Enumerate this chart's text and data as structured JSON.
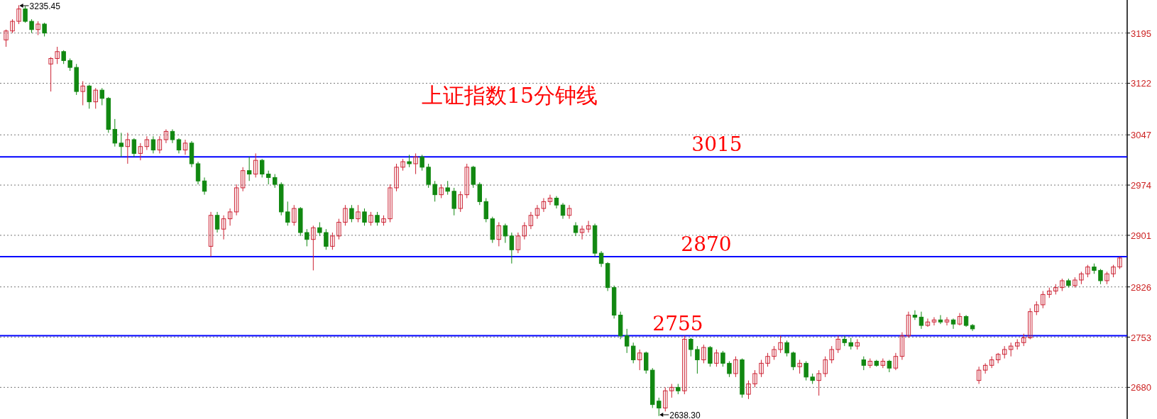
{
  "chart_data": {
    "type": "candlestick",
    "title": "上证指数15分钟线",
    "categories": [
      null,
      null,
      null,
      null,
      null,
      null,
      null,
      null,
      null,
      null,
      null,
      null,
      null,
      null,
      null,
      null,
      null,
      null,
      null,
      null,
      null,
      null,
      null,
      null,
      null,
      null,
      null,
      null,
      null,
      null,
      null,
      null,
      null,
      null,
      null,
      null,
      null,
      null,
      null,
      null,
      null,
      null,
      null,
      null,
      null,
      null,
      null,
      null,
      null,
      null,
      null,
      null,
      null,
      null,
      null,
      null,
      null,
      null,
      null,
      null,
      null,
      null,
      null,
      null,
      null,
      null,
      null,
      null,
      null,
      null,
      null,
      null,
      null,
      null,
      null,
      null,
      null,
      null,
      null,
      null,
      null,
      null,
      null,
      null,
      null,
      null,
      null,
      null,
      null,
      null,
      null,
      null,
      null,
      null,
      null,
      null,
      null,
      null,
      null,
      null,
      null,
      null,
      null,
      null,
      null,
      null,
      null,
      null,
      null,
      null,
      null,
      null,
      null,
      null,
      null,
      null,
      null,
      null,
      null,
      null,
      null,
      null,
      null,
      null,
      null,
      null,
      null,
      null,
      null,
      null,
      null,
      null,
      null,
      null,
      null,
      null,
      null,
      null,
      null,
      null,
      null,
      null,
      null,
      null,
      null,
      null,
      null,
      null,
      null,
      null,
      null,
      null,
      null,
      null,
      null,
      null,
      null,
      null,
      null,
      null,
      null,
      null,
      null,
      null,
      null,
      null,
      null,
      null,
      null,
      null,
      null,
      null,
      null,
      null,
      null
    ],
    "ohlc": [
      [
        3185,
        3200,
        3175,
        3198
      ],
      [
        3198,
        3215,
        3195,
        3212
      ],
      [
        3212,
        3235.45,
        3208,
        3230
      ],
      [
        3230,
        3234,
        3210,
        3212
      ],
      [
        3212,
        3215,
        3195,
        3200
      ],
      [
        3200,
        3212,
        3192,
        3208
      ],
      [
        3208,
        3210,
        3190,
        3195
      ],
      [
        3150,
        3160,
        3110,
        3158
      ],
      [
        3158,
        3175,
        3150,
        3168
      ],
      [
        3168,
        3170,
        3150,
        3155
      ],
      [
        3155,
        3158,
        3140,
        3145
      ],
      [
        3145,
        3150,
        3105,
        3110
      ],
      [
        3110,
        3125,
        3090,
        3118
      ],
      [
        3118,
        3120,
        3085,
        3095
      ],
      [
        3095,
        3115,
        3085,
        3112
      ],
      [
        3112,
        3115,
        3090,
        3100
      ],
      [
        3100,
        3102,
        3050,
        3055
      ],
      [
        3055,
        3070,
        3030,
        3035
      ],
      [
        3035,
        3050,
        3015,
        3030
      ],
      [
        3030,
        3050,
        3005,
        3040
      ],
      [
        3040,
        3042,
        3015,
        3020
      ],
      [
        3020,
        3035,
        3010,
        3030
      ],
      [
        3030,
        3045,
        3025,
        3040
      ],
      [
        3040,
        3045,
        3020,
        3025
      ],
      [
        3025,
        3045,
        3020,
        3040
      ],
      [
        3040,
        3055,
        3035,
        3052
      ],
      [
        3052,
        3055,
        3035,
        3040
      ],
      [
        3040,
        3042,
        3020,
        3025
      ],
      [
        3025,
        3040,
        3018,
        3035
      ],
      [
        3035,
        3038,
        3000,
        3005
      ],
      [
        3005,
        3008,
        2975,
        2980
      ],
      [
        2980,
        2985,
        2960,
        2965
      ],
      [
        2885,
        2935,
        2870,
        2930
      ],
      [
        2930,
        2935,
        2905,
        2910
      ],
      [
        2910,
        2930,
        2895,
        2925
      ],
      [
        2925,
        2940,
        2915,
        2935
      ],
      [
        2935,
        2975,
        2930,
        2970
      ],
      [
        2970,
        3000,
        2965,
        2995
      ],
      [
        2995,
        3015,
        2980,
        2990
      ],
      [
        2990,
        3020,
        2985,
        3010
      ],
      [
        3010,
        3012,
        2985,
        2990
      ],
      [
        2990,
        2995,
        2975,
        2985
      ],
      [
        2985,
        2990,
        2970,
        2975
      ],
      [
        2975,
        2978,
        2930,
        2935
      ],
      [
        2935,
        2950,
        2915,
        2920
      ],
      [
        2920,
        2945,
        2915,
        2940
      ],
      [
        2940,
        2942,
        2900,
        2905
      ],
      [
        2905,
        2910,
        2885,
        2895
      ],
      [
        2895,
        2915,
        2850,
        2912
      ],
      [
        2912,
        2920,
        2900,
        2905
      ],
      [
        2905,
        2910,
        2880,
        2885
      ],
      [
        2885,
        2905,
        2880,
        2900
      ],
      [
        2900,
        2925,
        2895,
        2920
      ],
      [
        2920,
        2945,
        2915,
        2940
      ],
      [
        2940,
        2945,
        2920,
        2925
      ],
      [
        2925,
        2945,
        2920,
        2935
      ],
      [
        2935,
        2940,
        2915,
        2920
      ],
      [
        2920,
        2935,
        2915,
        2930
      ],
      [
        2930,
        2935,
        2915,
        2920
      ],
      [
        2920,
        2930,
        2915,
        2925
      ],
      [
        2925,
        2975,
        2920,
        2970
      ],
      [
        2970,
        3005,
        2965,
        3000
      ],
      [
        3000,
        3012,
        2995,
        3008
      ],
      [
        3008,
        3018,
        3000,
        3005
      ],
      [
        3005,
        3020,
        2990,
        3015
      ],
      [
        3015,
        3018,
        2995,
        3000
      ],
      [
        3000,
        3005,
        2970,
        2975
      ],
      [
        2975,
        2980,
        2950,
        2960
      ],
      [
        2960,
        2975,
        2955,
        2970
      ],
      [
        2970,
        2980,
        2960,
        2965
      ],
      [
        2965,
        2970,
        2930,
        2940
      ],
      [
        2940,
        2965,
        2935,
        2960
      ],
      [
        2960,
        3005,
        2955,
        3000
      ],
      [
        3000,
        3002,
        2970,
        2975
      ],
      [
        2975,
        2978,
        2945,
        2950
      ],
      [
        2950,
        2955,
        2920,
        2925
      ],
      [
        2925,
        2928,
        2890,
        2895
      ],
      [
        2895,
        2920,
        2885,
        2915
      ],
      [
        2915,
        2918,
        2890,
        2900
      ],
      [
        2900,
        2905,
        2860,
        2880
      ],
      [
        2880,
        2905,
        2875,
        2900
      ],
      [
        2900,
        2920,
        2895,
        2915
      ],
      [
        2915,
        2935,
        2910,
        2930
      ],
      [
        2930,
        2945,
        2925,
        2940
      ],
      [
        2940,
        2955,
        2935,
        2950
      ],
      [
        2950,
        2960,
        2945,
        2955
      ],
      [
        2955,
        2958,
        2940,
        2945
      ],
      [
        2945,
        2948,
        2925,
        2930
      ],
      [
        2930,
        2945,
        2925,
        2940
      ],
      [
        2915,
        2920,
        2900,
        2905
      ],
      [
        2905,
        2915,
        2895,
        2910
      ],
      [
        2910,
        2922,
        2905,
        2915
      ],
      [
        2915,
        2918,
        2870,
        2875
      ],
      [
        2875,
        2878,
        2855,
        2860
      ],
      [
        2860,
        2862,
        2820,
        2825
      ],
      [
        2825,
        2828,
        2780,
        2785
      ],
      [
        2785,
        2790,
        2750,
        2755
      ],
      [
        2755,
        2765,
        2730,
        2740
      ],
      [
        2740,
        2745,
        2715,
        2720
      ],
      [
        2720,
        2735,
        2705,
        2730
      ],
      [
        2730,
        2732,
        2700,
        2705
      ],
      [
        2705,
        2708,
        2650,
        2655
      ],
      [
        2660,
        2665,
        2638.3,
        2650
      ],
      [
        2650,
        2680,
        2645,
        2675
      ],
      [
        2675,
        2685,
        2665,
        2680
      ],
      [
        2680,
        2685,
        2670,
        2675
      ],
      [
        2675,
        2755,
        2670,
        2750
      ],
      [
        2750,
        2752,
        2725,
        2735
      ],
      [
        2735,
        2740,
        2700,
        2720
      ],
      [
        2720,
        2742,
        2715,
        2738
      ],
      [
        2738,
        2740,
        2710,
        2715
      ],
      [
        2715,
        2735,
        2710,
        2730
      ],
      [
        2730,
        2733,
        2710,
        2715
      ],
      [
        2715,
        2718,
        2695,
        2700
      ],
      [
        2700,
        2725,
        2695,
        2720
      ],
      [
        2720,
        2722,
        2665,
        2670
      ],
      [
        2670,
        2690,
        2663,
        2685
      ],
      [
        2685,
        2705,
        2680,
        2700
      ],
      [
        2700,
        2720,
        2695,
        2715
      ],
      [
        2715,
        2730,
        2710,
        2725
      ],
      [
        2725,
        2740,
        2720,
        2735
      ],
      [
        2735,
        2755,
        2730,
        2745
      ],
      [
        2745,
        2748,
        2725,
        2730
      ],
      [
        2730,
        2732,
        2705,
        2710
      ],
      [
        2710,
        2720,
        2700,
        2715
      ],
      [
        2715,
        2718,
        2690,
        2695
      ],
      [
        2695,
        2700,
        2685,
        2690
      ],
      [
        2690,
        2705,
        2668,
        2700
      ],
      [
        2700,
        2725,
        2695,
        2720
      ],
      [
        2720,
        2740,
        2715,
        2735
      ],
      [
        2735,
        2755,
        2730,
        2750
      ],
      [
        2750,
        2755,
        2740,
        2745
      ],
      [
        2745,
        2752,
        2735,
        2740
      ],
      [
        2740,
        2750,
        2735,
        2745
      ],
      [
        2720,
        2725,
        2705,
        2712
      ],
      [
        2712,
        2722,
        2708,
        2718
      ],
      [
        2718,
        2720,
        2710,
        2712
      ],
      [
        2712,
        2722,
        2708,
        2718
      ],
      [
        2718,
        2720,
        2702,
        2708
      ],
      [
        2708,
        2730,
        2705,
        2725
      ],
      [
        2725,
        2760,
        2720,
        2755
      ],
      [
        2755,
        2790,
        2752,
        2785
      ],
      [
        2785,
        2792,
        2778,
        2782
      ],
      [
        2782,
        2790,
        2765,
        2770
      ],
      [
        2770,
        2780,
        2768,
        2775
      ],
      [
        2775,
        2782,
        2770,
        2778
      ],
      [
        2778,
        2785,
        2772,
        2775
      ],
      [
        2775,
        2782,
        2770,
        2778
      ],
      [
        2778,
        2780,
        2765,
        2772
      ],
      [
        2772,
        2788,
        2770,
        2783
      ],
      [
        2783,
        2785,
        2768,
        2770
      ],
      [
        2770,
        2772,
        2762,
        2765
      ],
      [
        2690,
        2710,
        2685,
        2705
      ],
      [
        2705,
        2715,
        2700,
        2712
      ],
      [
        2712,
        2725,
        2708,
        2720
      ],
      [
        2720,
        2730,
        2715,
        2728
      ],
      [
        2728,
        2740,
        2722,
        2735
      ],
      [
        2735,
        2745,
        2725,
        2740
      ],
      [
        2740,
        2750,
        2735,
        2745
      ],
      [
        2745,
        2758,
        2740,
        2752
      ],
      [
        2752,
        2795,
        2750,
        2790
      ],
      [
        2790,
        2805,
        2785,
        2800
      ],
      [
        2800,
        2820,
        2795,
        2815
      ],
      [
        2815,
        2825,
        2810,
        2820
      ],
      [
        2820,
        2830,
        2815,
        2825
      ],
      [
        2825,
        2838,
        2820,
        2835
      ],
      [
        2835,
        2838,
        2825,
        2828
      ],
      [
        2828,
        2840,
        2825,
        2836
      ],
      [
        2836,
        2848,
        2830,
        2845
      ],
      [
        2845,
        2858,
        2840,
        2855
      ],
      [
        2855,
        2860,
        2845,
        2850
      ],
      [
        2850,
        2852,
        2830,
        2835
      ],
      [
        2835,
        2848,
        2830,
        2845
      ],
      [
        2845,
        2858,
        2840,
        2855
      ],
      [
        2855,
        2870,
        2852,
        2868
      ]
    ],
    "ylim": [
      2634,
      3243
    ],
    "yticks": [
      3195,
      3122,
      3047,
      2974,
      2901,
      2826,
      2753,
      2680
    ],
    "grid": "y",
    "tick_labels": "y",
    "ref_lines": [
      {
        "axis": "y",
        "value": 3015,
        "label": "3015",
        "color": "#0000ff"
      },
      {
        "axis": "y",
        "value": 2870,
        "label": "2870",
        "color": "#0000ff"
      },
      {
        "axis": "y",
        "value": 2755,
        "label": "2755",
        "color": "#0000ff"
      }
    ],
    "annotations": [
      "3235.45",
      "2638.30"
    ]
  }
}
